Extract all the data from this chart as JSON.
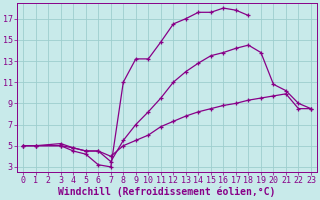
{
  "title": "",
  "xlabel": "Windchill (Refroidissement éolien,°C)",
  "ylabel": "",
  "xlim": [
    -0.5,
    23.5
  ],
  "ylim": [
    2.5,
    18.5
  ],
  "xticks": [
    0,
    1,
    2,
    3,
    4,
    5,
    6,
    7,
    8,
    9,
    10,
    11,
    12,
    13,
    14,
    15,
    16,
    17,
    18,
    19,
    20,
    21,
    22,
    23
  ],
  "yticks": [
    3,
    5,
    7,
    9,
    11,
    13,
    15,
    17
  ],
  "bg_color": "#c8eaea",
  "line_color": "#880088",
  "grid_color": "#9ecece",
  "line1_x": [
    0,
    1,
    3,
    4,
    5,
    6,
    7,
    8,
    9,
    10,
    11,
    12,
    13,
    14,
    15,
    16,
    17,
    18
  ],
  "line1_y": [
    5,
    5,
    5,
    4.5,
    4.2,
    3.2,
    3.0,
    11.0,
    13.2,
    13.2,
    14.8,
    16.5,
    17.0,
    17.6,
    17.6,
    18.0,
    17.8,
    17.3
  ],
  "line2_x": [
    0,
    1,
    3,
    4,
    5,
    6,
    7,
    8,
    9,
    10,
    11,
    12,
    13,
    14,
    15,
    16,
    17,
    18,
    19,
    20,
    21,
    22,
    23
  ],
  "line2_y": [
    5,
    5,
    5.2,
    4.8,
    4.5,
    4.5,
    3.5,
    5.5,
    7.0,
    8.2,
    9.5,
    11.0,
    12.0,
    12.8,
    13.5,
    13.8,
    14.2,
    14.5,
    13.8,
    10.8,
    10.2,
    9.0,
    8.5
  ],
  "line3_x": [
    0,
    1,
    3,
    4,
    5,
    6,
    7,
    8,
    9,
    10,
    11,
    12,
    13,
    14,
    15,
    16,
    17,
    18,
    19,
    20,
    21,
    22,
    23
  ],
  "line3_y": [
    5,
    5,
    5,
    4.8,
    4.5,
    4.5,
    4.0,
    5.0,
    5.5,
    6.0,
    6.8,
    7.3,
    7.8,
    8.2,
    8.5,
    8.8,
    9.0,
    9.3,
    9.5,
    9.7,
    9.9,
    8.5,
    8.5
  ],
  "tick_fontsize": 6.0,
  "xlabel_fontsize": 7.0
}
